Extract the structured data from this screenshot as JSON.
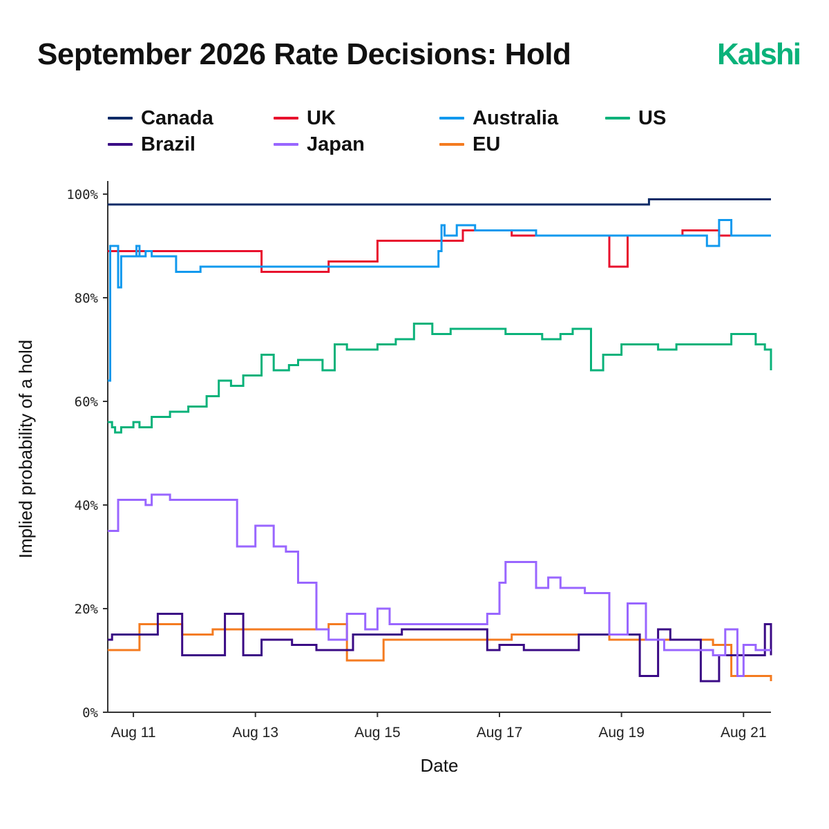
{
  "header": {
    "title": "September 2026 Rate Decisions: Hold",
    "brand": "Kalshi",
    "brand_color": "#0ab27a"
  },
  "chart_data": {
    "type": "line",
    "step": true,
    "title": "September 2026 Rate Decisions: Hold",
    "xlabel": "Date",
    "ylabel": "Implied probability of a hold",
    "x_unit": "days after Aug 11, 2026 (fractional)",
    "xlim": [
      -0.42,
      10.45
    ],
    "ylim": [
      0,
      100
    ],
    "yticks": [
      0,
      20,
      40,
      60,
      80,
      100
    ],
    "ytick_labels": [
      "0%",
      "20%",
      "40%",
      "60%",
      "80%",
      "100%"
    ],
    "xticks": [
      0,
      2,
      4,
      6,
      8,
      10
    ],
    "xtick_labels": [
      "Aug 11",
      "Aug 13",
      "Aug 15",
      "Aug 17",
      "Aug 19",
      "Aug 21"
    ],
    "grid": false,
    "legend_position": "top",
    "series": [
      {
        "name": "Canada",
        "color": "#0b2a66",
        "x": [
          -0.42,
          8.45,
          10.45
        ],
        "y": [
          98,
          99,
          99
        ]
      },
      {
        "name": "UK",
        "color": "#e8112d",
        "x": [
          -0.42,
          1.2,
          2.1,
          3.2,
          4.0,
          4.6,
          5.1,
          5.4,
          6.0,
          6.2,
          6.8,
          7.4,
          7.8,
          8.1,
          9.0,
          9.6,
          10.45
        ],
        "y": [
          89,
          89,
          85,
          87,
          91,
          91,
          91,
          93,
          93,
          92,
          92,
          92,
          86,
          92,
          93,
          92,
          92
        ]
      },
      {
        "name": "Australia",
        "color": "#1199ee",
        "x": [
          -0.42,
          -0.38,
          -0.3,
          -0.25,
          -0.2,
          -0.1,
          0.1,
          0.05,
          0.2,
          0.3,
          0.5,
          0.7,
          1.1,
          3.0,
          4.6,
          5.0,
          5.05,
          5.1,
          5.3,
          5.6,
          6.6,
          8.5,
          9.0,
          9.4,
          9.6,
          9.8,
          10.45
        ],
        "y": [
          64,
          90,
          90,
          82,
          88,
          88,
          90,
          88,
          89,
          88,
          88,
          85,
          86,
          86,
          86,
          89,
          94,
          92,
          94,
          93,
          92,
          92,
          92,
          90,
          95,
          92,
          92
        ]
      },
      {
        "name": "US",
        "color": "#0ab27a",
        "x": [
          -0.42,
          -0.35,
          -0.3,
          -0.2,
          0.0,
          0.1,
          0.3,
          0.6,
          0.9,
          1.2,
          1.4,
          1.6,
          1.8,
          2.1,
          2.3,
          2.45,
          2.55,
          2.7,
          3.1,
          3.3,
          3.5,
          3.8,
          4.0,
          4.3,
          4.6,
          4.9,
          5.2,
          5.5,
          5.8,
          6.1,
          6.4,
          6.7,
          7.0,
          7.2,
          7.35,
          7.5,
          7.7,
          8.0,
          8.3,
          8.6,
          8.9,
          9.2,
          9.5,
          9.8,
          10.0,
          10.2,
          10.35,
          10.45
        ],
        "y": [
          56,
          55,
          54,
          55,
          56,
          55,
          57,
          58,
          59,
          61,
          64,
          63,
          65,
          69,
          66,
          66,
          67,
          68,
          66,
          71,
          70,
          70,
          71,
          72,
          75,
          73,
          74,
          74,
          74,
          73,
          73,
          72,
          73,
          74,
          74,
          66,
          69,
          71,
          71,
          70,
          71,
          71,
          71,
          73,
          73,
          71,
          70,
          66
        ]
      },
      {
        "name": "Brazil",
        "color": "#3a0a85",
        "x": [
          -0.42,
          -0.35,
          0.0,
          0.4,
          0.8,
          1.5,
          1.8,
          2.1,
          2.6,
          3.0,
          3.6,
          3.9,
          4.4,
          5.4,
          5.8,
          6.0,
          6.4,
          6.8,
          7.3,
          7.8,
          8.3,
          8.6,
          8.8,
          9.0,
          9.3,
          9.6,
          9.9,
          10.1,
          10.35,
          10.45
        ],
        "y": [
          14,
          15,
          15,
          19,
          11,
          19,
          11,
          14,
          13,
          12,
          15,
          15,
          16,
          16,
          12,
          13,
          12,
          12,
          15,
          15,
          7,
          16,
          14,
          14,
          6,
          11,
          11,
          11,
          17,
          11
        ]
      },
      {
        "name": "Japan",
        "color": "#9966ff",
        "x": [
          -0.42,
          -0.25,
          0.0,
          0.2,
          0.3,
          0.6,
          1.2,
          1.7,
          2.0,
          2.3,
          2.5,
          2.7,
          3.0,
          3.2,
          3.5,
          3.8,
          4.0,
          4.2,
          4.5,
          4.8,
          5.1,
          5.4,
          5.6,
          5.8,
          6.0,
          6.1,
          6.3,
          6.6,
          6.8,
          7.0,
          7.4,
          7.8,
          8.1,
          8.4,
          8.7,
          9.0,
          9.3,
          9.5,
          9.7,
          9.9,
          10.0,
          10.2,
          10.45
        ],
        "y": [
          35,
          41,
          41,
          40,
          42,
          41,
          41,
          32,
          36,
          32,
          31,
          25,
          16,
          14,
          19,
          16,
          20,
          17,
          17,
          17,
          17,
          17,
          17,
          19,
          25,
          29,
          29,
          24,
          26,
          24,
          23,
          15,
          21,
          14,
          12,
          12,
          12,
          11,
          16,
          7,
          13,
          12,
          12
        ]
      },
      {
        "name": "EU",
        "color": "#f47b20",
        "x": [
          -0.42,
          -0.2,
          0.1,
          0.8,
          1.3,
          1.8,
          2.3,
          2.8,
          3.2,
          3.5,
          4.1,
          4.3,
          5.0,
          6.2,
          7.0,
          7.4,
          7.8,
          8.1,
          8.8,
          9.1,
          9.5,
          9.8,
          10.0,
          10.3,
          10.45
        ],
        "y": [
          12,
          12,
          17,
          15,
          16,
          16,
          16,
          16,
          17,
          10,
          14,
          14,
          14,
          15,
          15,
          15,
          14,
          14,
          14,
          14,
          13,
          7,
          7,
          7,
          6
        ]
      }
    ]
  }
}
